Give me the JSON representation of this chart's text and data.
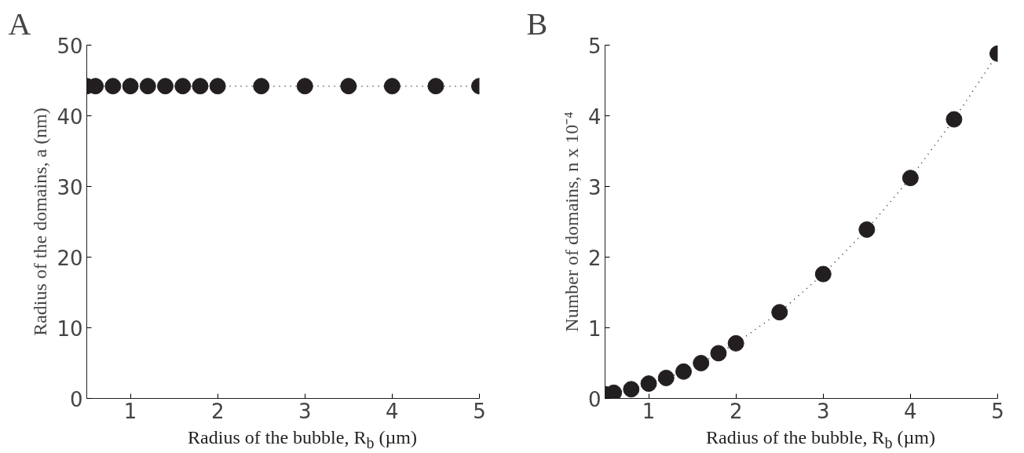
{
  "chart_data": [
    {
      "type": "line",
      "title": "A",
      "xlabel": "Radius of the bubble, R$_{b}$ (µm)",
      "ylabel": "Radius of the domains, a (nm)",
      "marker": "circle",
      "line_style": "dotted",
      "grid": false,
      "series": [
        {
          "color": "#231f20",
          "x": [
            0.5,
            0.6,
            0.8,
            1.0,
            1.2,
            1.4,
            1.6,
            1.8,
            2.0,
            2.5,
            3.0,
            3.5,
            4.0,
            4.5,
            5.0
          ],
          "values": [
            44.2,
            44.2,
            44.2,
            44.2,
            44.2,
            44.2,
            44.2,
            44.2,
            44.2,
            44.2,
            44.2,
            44.2,
            44.2,
            44.2,
            44.2
          ]
        }
      ],
      "xlim": [
        0.5,
        5
      ],
      "xticks": [
        1,
        2,
        3,
        4,
        5
      ],
      "ylim": [
        0,
        50
      ],
      "yticks": [
        0,
        10,
        20,
        30,
        40,
        50
      ]
    },
    {
      "type": "line",
      "title": "B",
      "xlabel": "Radius of the bubble, R$_{b}$ (µm)",
      "ylabel": "Number of domains, n x 10⁻⁴",
      "marker": "circle",
      "line_style": "dotted",
      "grid": false,
      "series": [
        {
          "color": "#231f20",
          "x": [
            0.5,
            0.6,
            0.8,
            1.0,
            1.2,
            1.4,
            1.6,
            1.8,
            2.0,
            2.5,
            3.0,
            3.5,
            4.0,
            4.5,
            5.0
          ],
          "values": [
            0.06,
            0.08,
            0.13,
            0.21,
            0.29,
            0.38,
            0.5,
            0.64,
            0.78,
            1.22,
            1.76,
            2.39,
            3.12,
            3.95,
            4.88
          ]
        }
      ],
      "xlim": [
        0.5,
        5
      ],
      "xticks": [
        1,
        2,
        3,
        4,
        5
      ],
      "ylim": [
        0,
        5
      ],
      "yticks": [
        0,
        1,
        2,
        3,
        4,
        5
      ]
    }
  ]
}
